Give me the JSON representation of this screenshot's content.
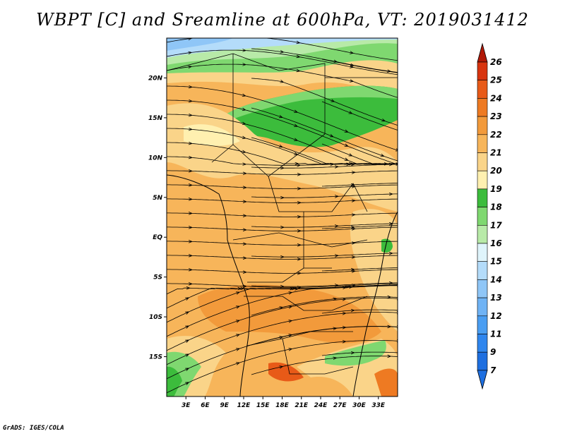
{
  "title": "WBPT [C] and Sreamline at 600hPa, VT: 2019031412",
  "footer": "GrADS: IGES/COLA",
  "colors": {
    "c7": "#1e6fe0",
    "c9": "#2f86ee",
    "c11": "#4a9ef2",
    "c12": "#6fb3f5",
    "c13": "#8fc6f7",
    "c14": "#b4dcfa",
    "c15": "#dff4fb",
    "c16": "#b8eaa8",
    "c17": "#7fd870",
    "c18": "#3cbc3c",
    "c19": "#fff0b0",
    "c20": "#fad489",
    "c21": "#f7b55a",
    "c22": "#f29a3b",
    "c23": "#ee7a22",
    "c24": "#e85a18",
    "c25": "#d8340f",
    "c26": "#b01807"
  },
  "map": {
    "lon_range": [
      0,
      36
    ],
    "lat_range": [
      -20,
      25
    ],
    "x_ticks": [
      "3E",
      "6E",
      "9E",
      "12E",
      "15E",
      "18E",
      "21E",
      "24E",
      "27E",
      "30E",
      "33E"
    ],
    "y_ticks": [
      "20N",
      "15N",
      "10N",
      "5N",
      "EQ",
      "5S",
      "10S",
      "15S"
    ]
  },
  "colorbar": {
    "labels": [
      "7",
      "9",
      "11",
      "12",
      "13",
      "14",
      "15",
      "16",
      "17",
      "18",
      "19",
      "20",
      "21",
      "22",
      "23",
      "24",
      "25",
      "26"
    ]
  }
}
